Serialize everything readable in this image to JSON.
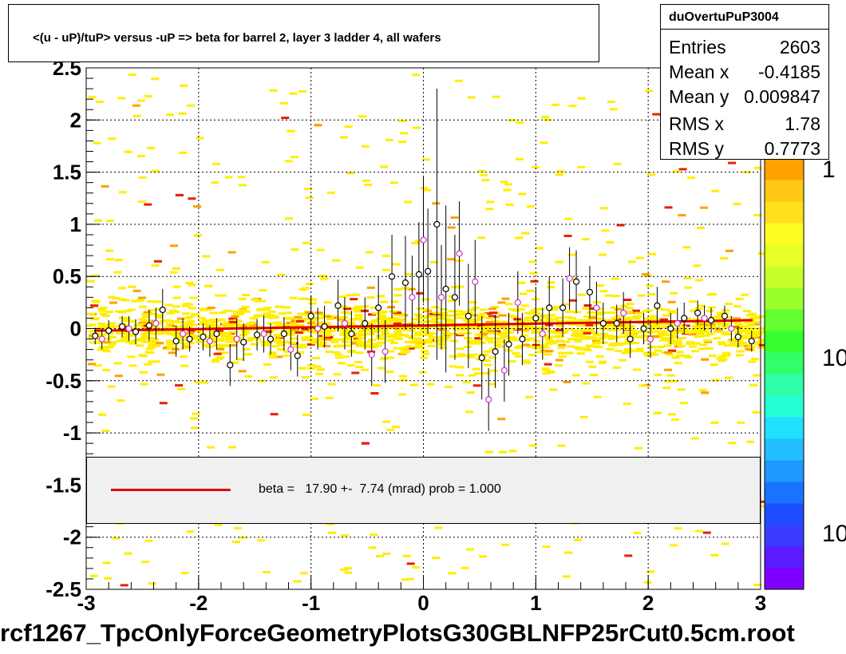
{
  "title": "<(u - uP)/tuP> versus  -uP => beta for barrel 2, layer 3 ladder 4, all wafers",
  "stats": {
    "name": "duOvertuPuP3004",
    "rows": [
      {
        "label": "Entries",
        "value": "2603"
      },
      {
        "label": "Mean x",
        "value": "-0.4185"
      },
      {
        "label": "Mean y",
        "value": "0.009847"
      },
      {
        "label": "RMS x",
        "value": "1.78"
      },
      {
        "label": "RMS y",
        "value": "0.7773"
      }
    ]
  },
  "legend": {
    "text": "beta =   17.90 +-  7.74 (mrad) prob = 1.000"
  },
  "bottom_title": "rcf1267_TpcOnlyForceGeometryPlotsG30GBLNFP25rCut0.5cm.root",
  "palette_labels": [
    "1",
    "10",
    "10"
  ],
  "colors": {
    "fit_line": "#e00000",
    "profile_black": "#000000",
    "profile_magenta": "#cc33cc",
    "cell_yellow": "#ffee00",
    "cell_orange": "#ffa000",
    "cell_red": "#e82000"
  },
  "chart_data": {
    "type": "heatmap",
    "xlim": [
      -3,
      3
    ],
    "ylim": [
      -2.5,
      2.5
    ],
    "x_ticks": [
      "-3",
      "-2",
      "-1",
      "0",
      "1",
      "2",
      "3"
    ],
    "y_ticks": [
      "-2.5",
      "-2",
      "-1.5",
      "-1",
      "-0.5",
      "0",
      "0.5",
      "1",
      "1.5",
      "2",
      "2.5"
    ],
    "grid": true,
    "colorbar": "log",
    "fit": {
      "x": [
        -3,
        3
      ],
      "y": [
        -0.02,
        0.08
      ]
    },
    "profile_black": [
      {
        "x": -2.92,
        "y": -0.07,
        "e": 0.08
      },
      {
        "x": -2.8,
        "y": -0.02,
        "e": 0.1
      },
      {
        "x": -2.68,
        "y": 0.02,
        "e": 0.1
      },
      {
        "x": -2.56,
        "y": -0.03,
        "e": 0.12
      },
      {
        "x": -2.44,
        "y": 0.03,
        "e": 0.15
      },
      {
        "x": -2.32,
        "y": 0.18,
        "e": 0.2
      },
      {
        "x": -2.2,
        "y": -0.12,
        "e": 0.15
      },
      {
        "x": -2.08,
        "y": -0.1,
        "e": 0.12
      },
      {
        "x": -1.96,
        "y": -0.08,
        "e": 0.13
      },
      {
        "x": -1.84,
        "y": -0.05,
        "e": 0.15
      },
      {
        "x": -1.72,
        "y": -0.35,
        "e": 0.2
      },
      {
        "x": -1.6,
        "y": -0.13,
        "e": 0.18
      },
      {
        "x": -1.48,
        "y": -0.06,
        "e": 0.15
      },
      {
        "x": -1.36,
        "y": -0.1,
        "e": 0.15
      },
      {
        "x": -1.24,
        "y": -0.05,
        "e": 0.16
      },
      {
        "x": -1.12,
        "y": -0.26,
        "e": 0.2
      },
      {
        "x": -1.0,
        "y": 0.12,
        "e": 0.2
      },
      {
        "x": -0.88,
        "y": 0.02,
        "e": 0.2
      },
      {
        "x": -0.76,
        "y": 0.22,
        "e": 0.25
      },
      {
        "x": -0.64,
        "y": -0.05,
        "e": 0.22
      },
      {
        "x": -0.52,
        "y": 0.05,
        "e": 0.25
      },
      {
        "x": -0.4,
        "y": 0.2,
        "e": 0.3
      },
      {
        "x": -0.28,
        "y": 0.5,
        "e": 0.4
      },
      {
        "x": -0.16,
        "y": 0.44,
        "e": 0.45
      },
      {
        "x": -0.04,
        "y": 0.52,
        "e": 0.5
      },
      {
        "x": 0.04,
        "y": 0.55,
        "e": 0.6
      },
      {
        "x": 0.12,
        "y": 1.0,
        "e": 1.3
      },
      {
        "x": 0.2,
        "y": 0.38,
        "e": 0.8
      },
      {
        "x": 0.28,
        "y": 0.3,
        "e": 0.6
      },
      {
        "x": 0.4,
        "y": 0.12,
        "e": 0.5
      },
      {
        "x": 0.52,
        "y": -0.28,
        "e": 0.4
      },
      {
        "x": 0.64,
        "y": -0.22,
        "e": 0.35
      },
      {
        "x": 0.76,
        "y": -0.15,
        "e": 0.3
      },
      {
        "x": 0.88,
        "y": -0.1,
        "e": 0.25
      },
      {
        "x": 1.0,
        "y": 0.1,
        "e": 0.3
      },
      {
        "x": 1.12,
        "y": 0.2,
        "e": 0.3
      },
      {
        "x": 1.24,
        "y": 0.2,
        "e": 0.28
      },
      {
        "x": 1.36,
        "y": 0.45,
        "e": 0.3
      },
      {
        "x": 1.48,
        "y": 0.35,
        "e": 0.25
      },
      {
        "x": 1.6,
        "y": 0.05,
        "e": 0.2
      },
      {
        "x": 1.72,
        "y": 0.05,
        "e": 0.18
      },
      {
        "x": 1.84,
        "y": -0.1,
        "e": 0.18
      },
      {
        "x": 1.96,
        "y": 0.0,
        "e": 0.15
      },
      {
        "x": 2.08,
        "y": 0.22,
        "e": 0.18
      },
      {
        "x": 2.2,
        "y": 0.0,
        "e": 0.15
      },
      {
        "x": 2.32,
        "y": 0.1,
        "e": 0.15
      },
      {
        "x": 2.44,
        "y": 0.15,
        "e": 0.12
      },
      {
        "x": 2.56,
        "y": 0.08,
        "e": 0.12
      },
      {
        "x": 2.68,
        "y": 0.12,
        "e": 0.1
      },
      {
        "x": 2.8,
        "y": -0.08,
        "e": 0.1
      },
      {
        "x": 2.92,
        "y": -0.12,
        "e": 0.1
      }
    ],
    "profile_magenta": [
      {
        "x": -2.86,
        "y": -0.1,
        "e": 0.1
      },
      {
        "x": -2.62,
        "y": 0.0,
        "e": 0.12
      },
      {
        "x": -2.38,
        "y": 0.05,
        "e": 0.15
      },
      {
        "x": -2.14,
        "y": -0.05,
        "e": 0.15
      },
      {
        "x": -1.9,
        "y": -0.12,
        "e": 0.15
      },
      {
        "x": -1.66,
        "y": -0.1,
        "e": 0.2
      },
      {
        "x": -1.42,
        "y": -0.05,
        "e": 0.18
      },
      {
        "x": -1.18,
        "y": -0.2,
        "e": 0.2
      },
      {
        "x": -0.94,
        "y": 0.0,
        "e": 0.2
      },
      {
        "x": -0.7,
        "y": 0.05,
        "e": 0.25
      },
      {
        "x": -0.46,
        "y": -0.25,
        "e": 0.3
      },
      {
        "x": -0.34,
        "y": -0.22,
        "e": 0.3
      },
      {
        "x": -0.1,
        "y": 0.3,
        "e": 0.4
      },
      {
        "x": 0.0,
        "y": 0.85,
        "e": 0.6
      },
      {
        "x": 0.16,
        "y": 0.3,
        "e": 0.5
      },
      {
        "x": 0.32,
        "y": 0.72,
        "e": 0.5
      },
      {
        "x": 0.46,
        "y": 0.45,
        "e": 0.4
      },
      {
        "x": 0.58,
        "y": -0.68,
        "e": 0.3
      },
      {
        "x": 0.72,
        "y": -0.4,
        "e": 0.3
      },
      {
        "x": 0.84,
        "y": 0.25,
        "e": 0.3
      },
      {
        "x": 1.06,
        "y": -0.05,
        "e": 0.25
      },
      {
        "x": 1.3,
        "y": 0.48,
        "e": 0.3
      },
      {
        "x": 1.54,
        "y": 0.2,
        "e": 0.25
      },
      {
        "x": 1.78,
        "y": 0.15,
        "e": 0.2
      },
      {
        "x": 2.02,
        "y": -0.1,
        "e": 0.18
      },
      {
        "x": 2.26,
        "y": 0.05,
        "e": 0.15
      },
      {
        "x": 2.5,
        "y": 0.1,
        "e": 0.12
      },
      {
        "x": 2.74,
        "y": 0.0,
        "e": 0.12
      }
    ]
  }
}
